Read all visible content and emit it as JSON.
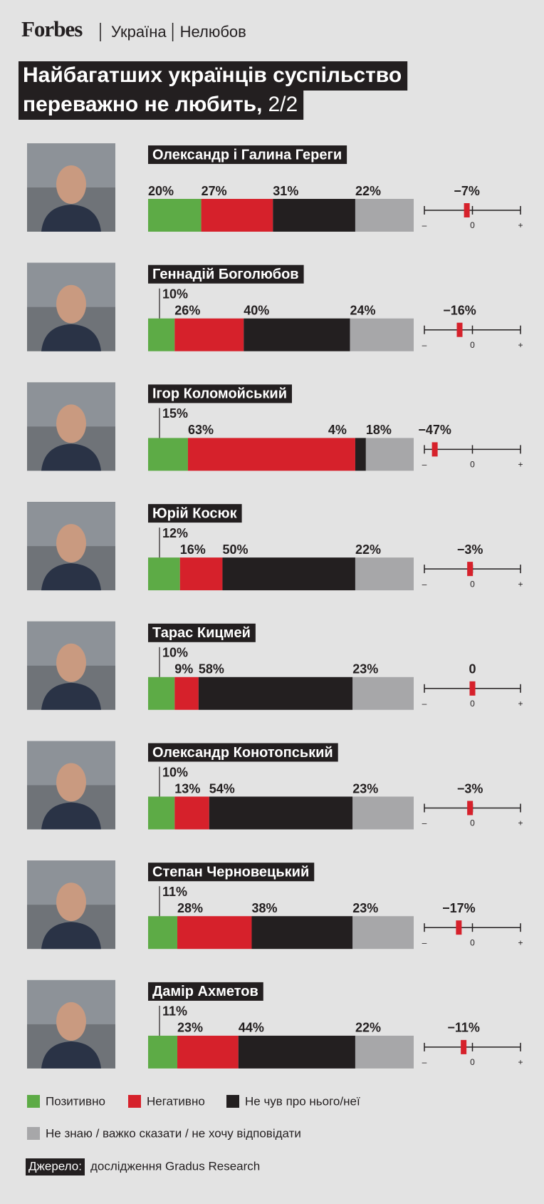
{
  "header": {
    "brand": "Forbes",
    "section": "Україна",
    "topic": "Нелюбов"
  },
  "chart_data": {
    "type": "stacked-bar",
    "title": [
      "Найбагатших українців суспільство",
      "переважно не любить,"
    ],
    "title_part": "2/2",
    "categories": [
      "Олександр і Галина Гереги",
      "Геннадій Боголюбов",
      "Ігор Коломойський",
      "Юрій Косюк",
      "Тарас Кицмей",
      "Олександр Конотопський",
      "Степан Черновецький",
      "Дамір Ахметов"
    ],
    "xlim": [
      0,
      100
    ],
    "series": [
      {
        "name": "Позитивно",
        "color": "#5dab46",
        "values": [
          20,
          10,
          15,
          12,
          10,
          10,
          11,
          11
        ],
        "value_labels": [
          "20%",
          "10%",
          "15%",
          "12%",
          "10%",
          "10%",
          "11%",
          "11%"
        ]
      },
      {
        "name": "Негативно",
        "color": "#d6212b",
        "values": [
          27,
          26,
          63,
          16,
          9,
          13,
          28,
          23
        ],
        "value_labels": [
          "27%",
          "26%",
          "63%",
          "16%",
          "9%",
          "13%",
          "28%",
          "23%"
        ]
      },
      {
        "name": "Не чув про нього/неї",
        "color": "#231f20",
        "values": [
          31,
          40,
          4,
          50,
          58,
          54,
          38,
          44
        ],
        "value_labels": [
          "31%",
          "40%",
          "4%",
          "50%",
          "58%",
          "54%",
          "38%",
          "44%"
        ]
      },
      {
        "name": "Не знаю / важко сказати / не хочу відповідати",
        "color": "#a7a7a9",
        "values": [
          22,
          24,
          18,
          22,
          23,
          23,
          23,
          22
        ],
        "value_labels": [
          "22%",
          "24%",
          "18%",
          "22%",
          "23%",
          "23%",
          "23%",
          "22%"
        ]
      }
    ],
    "net": {
      "values": [
        -7,
        -16,
        -47,
        -3,
        0,
        -3,
        -17,
        -11
      ],
      "value_labels": [
        "−7%",
        "−16%",
        "−47%",
        "−3%",
        "0",
        "−3%",
        "−17%",
        "−11%"
      ],
      "color": "#d6212b",
      "xlim": [
        -60,
        60
      ],
      "xticks": [
        {
          "value": -60,
          "label": "–"
        },
        0,
        {
          "value": 60,
          "label": "+"
        }
      ]
    }
  },
  "source": {
    "label": "Джерело:",
    "text": "дослідження Gradus Research"
  }
}
